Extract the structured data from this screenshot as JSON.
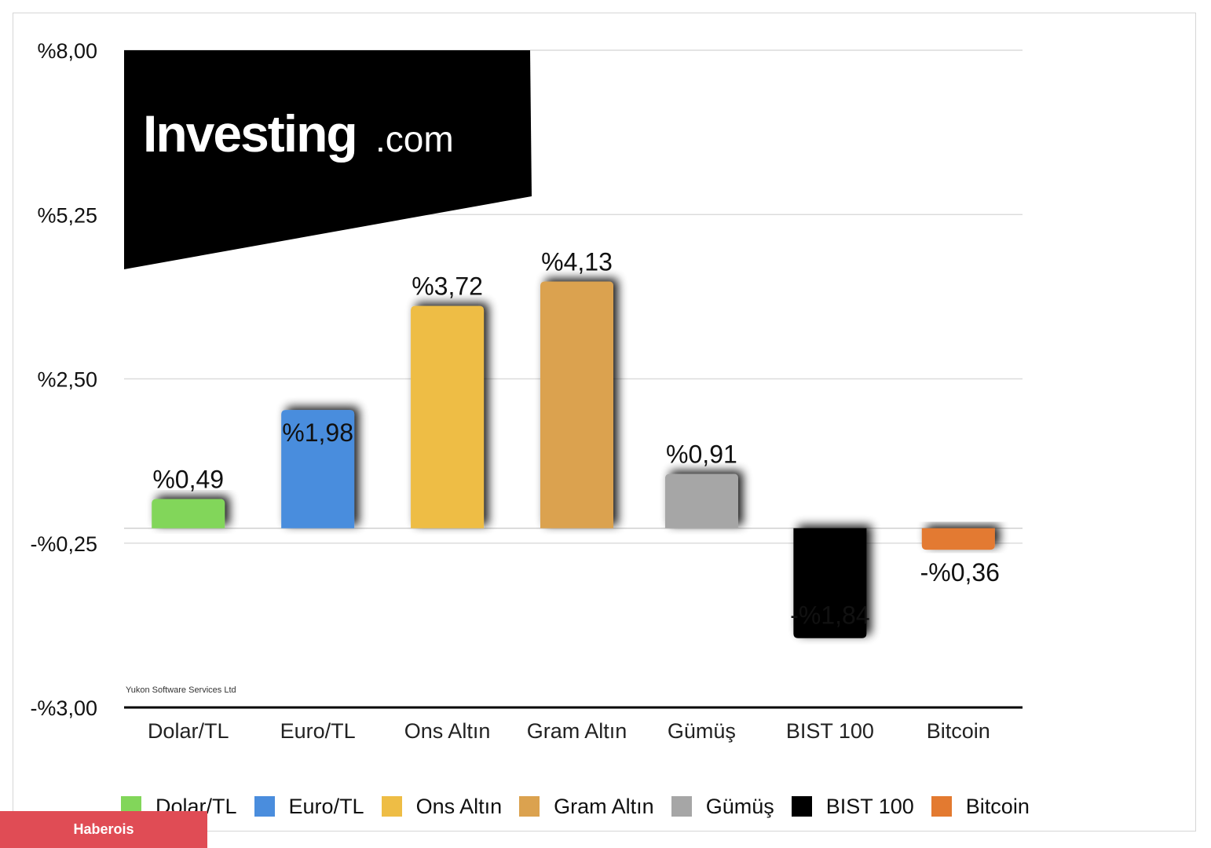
{
  "chart_data": {
    "type": "bar",
    "categories": [
      "Dolar/TL",
      "Euro/TL",
      "Ons Altın",
      "Gram Altın",
      "Gümüş",
      "BIST 100",
      "Bitcoin"
    ],
    "values": [
      0.49,
      1.98,
      3.72,
      4.13,
      0.91,
      -1.84,
      -0.36
    ],
    "data_labels": [
      "%0,49",
      "%1,98",
      "%3,72",
      "%4,13",
      "%0,91",
      "-%1,84",
      "-%0,36"
    ],
    "colors": [
      "#82d65a",
      "#4a8ddd",
      "#eebd45",
      "#dba24f",
      "#a6a6a6",
      "#000000",
      "#e37a30"
    ],
    "ylim": [
      -3.0,
      8.0
    ],
    "yticks": [
      -3.0,
      -0.25,
      2.5,
      5.25,
      8.0
    ],
    "ytick_labels": [
      "-%3,00",
      "-%0,25",
      "%2,50",
      "%5,25",
      "%8,00"
    ],
    "grid": true,
    "legend": "bottom",
    "title": "",
    "xlabel": "",
    "ylabel": ""
  },
  "logo": {
    "text_main": "Investing",
    "text_suffix": ".com"
  },
  "credit": "Yukon Software Services Ltd",
  "badge": "Haberois"
}
